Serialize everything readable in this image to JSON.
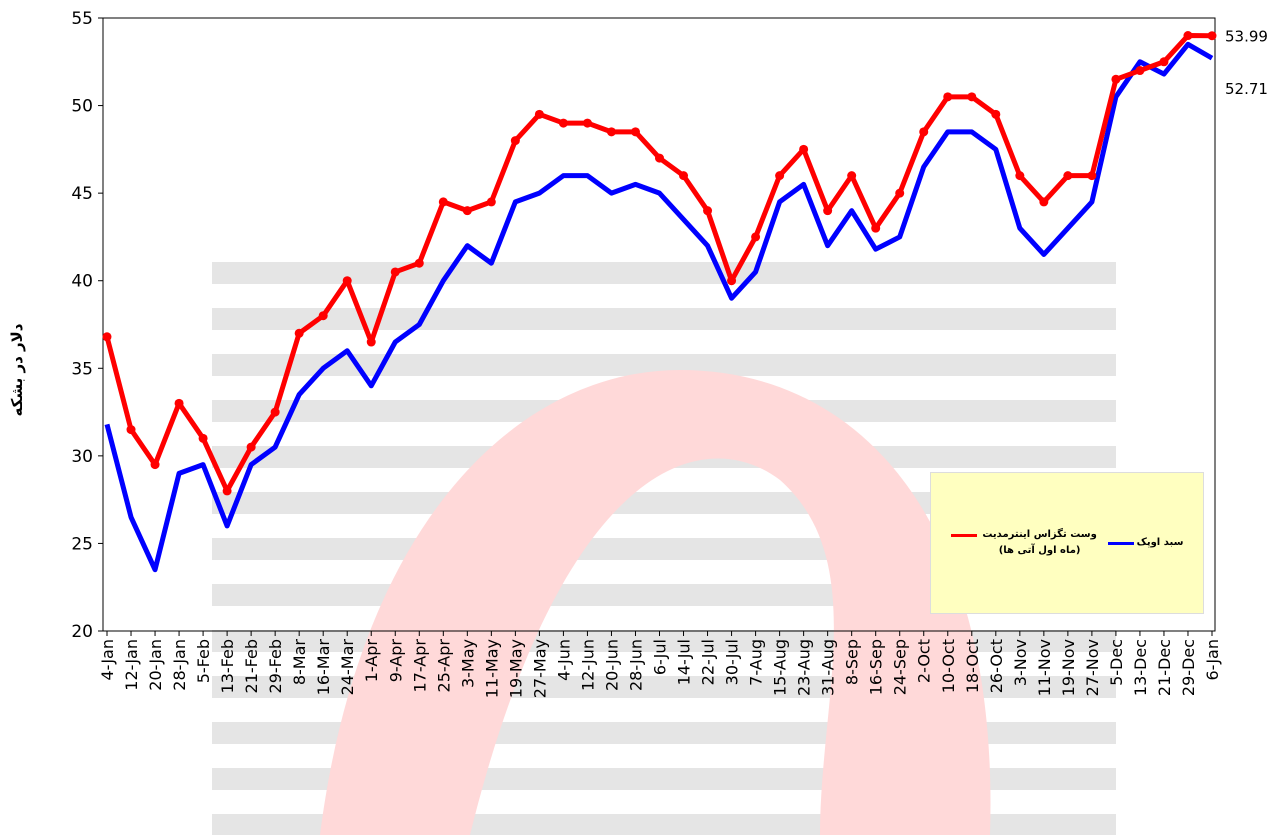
{
  "chart_data": {
    "type": "line",
    "y_label": "دلار در بشکه",
    "categories": [
      "4-Jan",
      "12-Jan",
      "20-Jan",
      "28-Jan",
      "5-Feb",
      "13-Feb",
      "21-Feb",
      "29-Feb",
      "8-Mar",
      "16-Mar",
      "24-Mar",
      "1-Apr",
      "9-Apr",
      "17-Apr",
      "25-Apr",
      "3-May",
      "11-May",
      "19-May",
      "27-May",
      "4-Jun",
      "12-Jun",
      "20-Jun",
      "28-Jun",
      "6-Jul",
      "14-Jul",
      "22-Jul",
      "30-Jul",
      "7-Aug",
      "15-Aug",
      "23-Aug",
      "31-Aug",
      "8-Sep",
      "16-Sep",
      "24-Sep",
      "2-Oct",
      "10-Oct",
      "18-Oct",
      "26-Oct",
      "3-Nov",
      "11-Nov",
      "19-Nov",
      "27-Nov",
      "5-Dec",
      "13-Dec",
      "21-Dec",
      "29-Dec",
      "6-Jan"
    ],
    "series": [
      {
        "name": "وست تگزاس اینترمدیت (ماه اول آتی ها)",
        "color": "#ff0000",
        "marker": true,
        "values": [
          36.8,
          31.5,
          29.5,
          33,
          31,
          28,
          30.5,
          32.5,
          37,
          38,
          40,
          36.5,
          40.5,
          41,
          44.5,
          44,
          44.5,
          48,
          49.5,
          49,
          49,
          48.5,
          48.5,
          47,
          46,
          44,
          40,
          42.5,
          46,
          47.5,
          44,
          46,
          43,
          45,
          48.5,
          50.5,
          50.5,
          49.5,
          46,
          44.5,
          46,
          46,
          51.5,
          52,
          52.5,
          54,
          53.99
        ]
      },
      {
        "name": "سبد اوپک",
        "color": "#0000ff",
        "marker": false,
        "values": [
          31.8,
          26.5,
          23.5,
          29,
          29.5,
          26,
          29.5,
          30.5,
          33.5,
          35,
          36,
          34,
          36.5,
          37.5,
          40,
          42,
          41,
          44.5,
          45,
          46,
          46,
          45,
          45.5,
          45,
          43.5,
          42,
          39,
          40.5,
          44.5,
          45.5,
          42,
          44,
          41.8,
          42.5,
          46.5,
          48.5,
          48.5,
          47.5,
          43,
          41.5,
          43,
          44.5,
          50.5,
          52.5,
          51.8,
          53.5,
          52.71
        ]
      }
    ],
    "ylim": [
      20,
      55
    ],
    "yticks": [
      20,
      25,
      30,
      35,
      40,
      45,
      50,
      55
    ],
    "grid": false
  }
}
